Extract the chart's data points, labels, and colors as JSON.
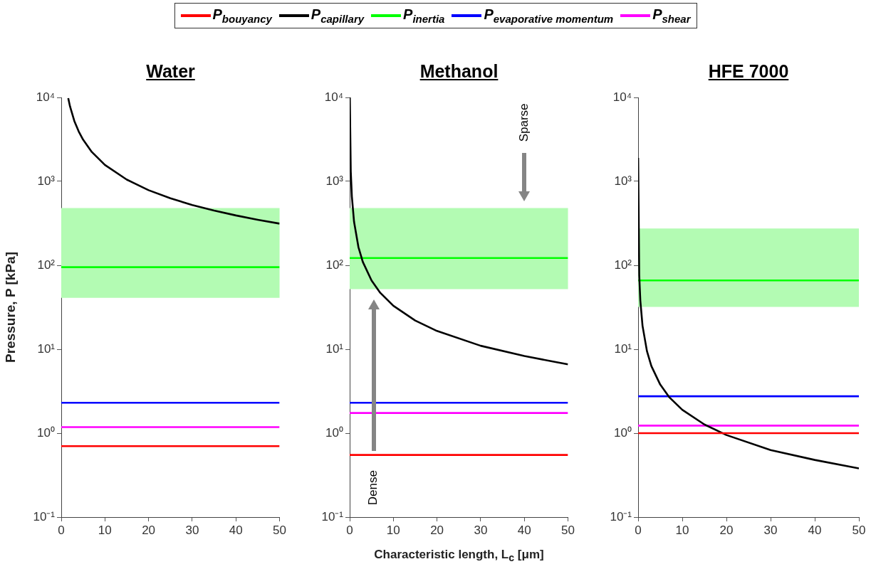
{
  "chart_data": [
    {
      "type": "line",
      "title": "Water",
      "ylabel": "Pressure, P [kPa]",
      "legend": "top",
      "log": "y",
      "grid": false,
      "marker": "none",
      "line_style": "solid",
      "xlim": [
        0,
        50
      ],
      "xticks": [
        0,
        10,
        20,
        30,
        40,
        50
      ],
      "ylim": [
        0.1,
        10000
      ],
      "yticks": [
        {
          "value": 0.1,
          "label": "10⁻¹"
        },
        {
          "value": 1,
          "label": "10⁰"
        },
        {
          "value": 10,
          "label": "10¹"
        },
        {
          "value": 100,
          "label": "10²"
        },
        {
          "value": 1000,
          "label": "10³"
        },
        {
          "value": 10000,
          "label": "10⁴"
        }
      ],
      "bands": [
        {
          "axis": "y",
          "from": 41,
          "to": 480,
          "color": "#b3fbb3"
        }
      ],
      "series": [
        {
          "name": "P$_{bouyancy}$",
          "color": "#ff0000",
          "x": [
            0,
            50
          ],
          "values": [
            0.7,
            0.7
          ]
        },
        {
          "name": "P$_{capillary}$",
          "color": "#000000",
          "x": [
            1.6,
            2,
            3,
            4,
            5,
            7,
            10,
            15,
            20,
            25,
            30,
            35,
            40,
            45,
            50
          ],
          "values": [
            9800,
            7850,
            5230,
            3930,
            3140,
            2240,
            1570,
            1050,
            785,
            628,
            523,
            449,
            393,
            349,
            314
          ]
        },
        {
          "name": "P$_{inertia}$",
          "color": "#00ff00",
          "x": [
            0,
            50
          ],
          "values": [
            95,
            95
          ]
        },
        {
          "name": "P$_{evaporative momentum}$",
          "color": "#0000ff",
          "x": [
            0,
            50
          ],
          "values": [
            2.3,
            2.3
          ]
        },
        {
          "name": "P$_{shear}$",
          "color": "#ff00ff",
          "x": [
            0,
            50
          ],
          "values": [
            1.18,
            1.18
          ]
        }
      ]
    },
    {
      "type": "line",
      "title": "Methanol",
      "xlabel": "Characteristic length, L$_{c}$ [μm]",
      "log": "y",
      "grid": false,
      "marker": "none",
      "line_style": "solid",
      "xlim": [
        0,
        50
      ],
      "xticks": [
        0,
        10,
        20,
        30,
        40,
        50
      ],
      "ylim": [
        0.1,
        10000
      ],
      "yticks": [
        {
          "value": 0.1,
          "label": "10⁻¹"
        },
        {
          "value": 1,
          "label": "10⁰"
        },
        {
          "value": 10,
          "label": "10¹"
        },
        {
          "value": 100,
          "label": "10²"
        },
        {
          "value": 1000,
          "label": "10³"
        },
        {
          "value": 10000,
          "label": "10⁴"
        }
      ],
      "bands": [
        {
          "axis": "y",
          "from": 52,
          "to": 480,
          "color": "#b3fbb3"
        }
      ],
      "annotations": [
        "Sparse",
        "Dense"
      ],
      "series": [
        {
          "color": "#ff0000",
          "x": [
            0,
            50
          ],
          "values": [
            0.55,
            0.55
          ]
        },
        {
          "color": "#000000",
          "x": [
            0.033,
            0.25,
            0.5,
            1,
            2,
            3,
            5,
            7,
            10,
            15,
            20,
            30,
            40,
            50
          ],
          "values": [
            10000,
            1320,
            660,
            330,
            165,
            110,
            66,
            47,
            33,
            22,
            16.5,
            11,
            8.3,
            6.6
          ]
        },
        {
          "color": "#00ff00",
          "x": [
            0,
            50
          ],
          "values": [
            122,
            122
          ]
        },
        {
          "color": "#0000ff",
          "x": [
            0,
            50
          ],
          "values": [
            2.3,
            2.3
          ]
        },
        {
          "color": "#ff00ff",
          "x": [
            0,
            50
          ],
          "values": [
            1.74,
            1.74
          ]
        }
      ]
    },
    {
      "type": "line",
      "title": "HFE 7000",
      "log": "y",
      "grid": false,
      "marker": "none",
      "line_style": "solid",
      "xlim": [
        0,
        50
      ],
      "xticks": [
        0,
        10,
        20,
        30,
        40,
        50
      ],
      "ylim": [
        0.1,
        10000
      ],
      "yticks": [
        {
          "value": 0.1,
          "label": "10⁻¹"
        },
        {
          "value": 1,
          "label": "10⁰"
        },
        {
          "value": 10,
          "label": "10¹"
        },
        {
          "value": 100,
          "label": "10²"
        },
        {
          "value": 1000,
          "label": "10³"
        },
        {
          "value": 10000,
          "label": "10⁴"
        }
      ],
      "bands": [
        {
          "axis": "y",
          "from": 32,
          "to": 274,
          "color": "#b3fbb3"
        }
      ],
      "series": [
        {
          "color": "#ff0000",
          "x": [
            0,
            50
          ],
          "values": [
            1.0,
            1.0
          ]
        },
        {
          "color": "#000000",
          "x": [
            0.01,
            0.25,
            0.5,
            1,
            2,
            3,
            5,
            7,
            10,
            15,
            20,
            30,
            40,
            50
          ],
          "values": [
            1900,
            76,
            38,
            19,
            9.5,
            6.3,
            3.8,
            2.7,
            1.9,
            1.27,
            0.95,
            0.63,
            0.48,
            0.38
          ]
        },
        {
          "color": "#00ff00",
          "x": [
            0,
            50
          ],
          "values": [
            66,
            66
          ]
        },
        {
          "color": "#0000ff",
          "x": [
            0,
            50
          ],
          "values": [
            2.75,
            2.75
          ]
        },
        {
          "color": "#ff00ff",
          "x": [
            0,
            50
          ],
          "values": [
            1.23,
            1.23
          ]
        }
      ]
    }
  ]
}
